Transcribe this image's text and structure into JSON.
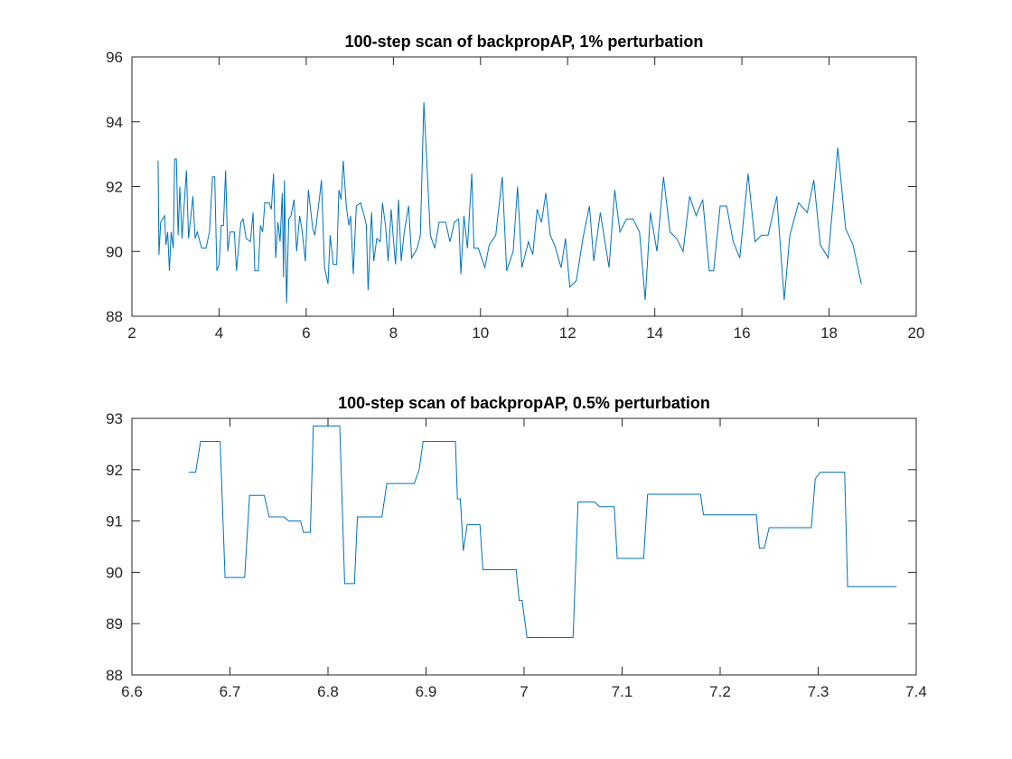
{
  "chart_data": [
    {
      "type": "line",
      "title": "100-step scan of backpropAP, 1% perturbation",
      "color": "#0072bd",
      "x": [
        2.6,
        2.62,
        2.66,
        2.75,
        2.78,
        2.82,
        2.86,
        2.9,
        2.95,
        2.98,
        3.02,
        3.06,
        3.1,
        3.15,
        3.25,
        3.3,
        3.4,
        3.45,
        3.5,
        3.6,
        3.7,
        3.78,
        3.85,
        3.9,
        3.95,
        4.0,
        4.05,
        4.1,
        4.15,
        4.2,
        4.25,
        4.35,
        4.4,
        4.5,
        4.55,
        4.62,
        4.72,
        4.78,
        4.82,
        4.9,
        4.95,
        5.0,
        5.05,
        5.15,
        5.2,
        5.25,
        5.3,
        5.35,
        5.4,
        5.45,
        5.48,
        5.5,
        5.55,
        5.6,
        5.65,
        5.72,
        5.78,
        5.85,
        5.9,
        5.98,
        6.05,
        6.15,
        6.2,
        6.3,
        6.35,
        6.42,
        6.5,
        6.55,
        6.62,
        6.7,
        6.75,
        6.8,
        6.85,
        6.92,
        6.98,
        7.02,
        7.08,
        7.15,
        7.25,
        7.35,
        7.38,
        7.42,
        7.5,
        7.55,
        7.62,
        7.7,
        7.75,
        7.82,
        7.88,
        7.95,
        8.0,
        8.05,
        8.12,
        8.18,
        8.25,
        8.35,
        8.42,
        8.55,
        8.62,
        8.7,
        8.85,
        8.95,
        9.05,
        9.2,
        9.3,
        9.4,
        9.5,
        9.55,
        9.62,
        9.7,
        9.8,
        9.85,
        9.95,
        10.1,
        10.2,
        10.35,
        10.5,
        10.6,
        10.75,
        10.85,
        10.95,
        11.1,
        11.2,
        11.3,
        11.4,
        11.5,
        11.6,
        11.7,
        11.85,
        11.95,
        12.05,
        12.2,
        12.35,
        12.5,
        12.6,
        12.75,
        12.95,
        13.08,
        13.2,
        13.35,
        13.5,
        13.65,
        13.78,
        13.9,
        14.05,
        14.2,
        14.35,
        14.5,
        14.65,
        14.8,
        14.95,
        15.1,
        15.25,
        15.35,
        15.5,
        15.65,
        15.8,
        15.95,
        16.14,
        16.3,
        16.45,
        16.6,
        16.8,
        16.97,
        17.1,
        17.3,
        17.5,
        17.65,
        17.8,
        17.98,
        18.2,
        18.38,
        18.55,
        18.74
      ],
      "values": [
        92.8,
        89.9,
        90.9,
        91.1,
        90.2,
        90.6,
        89.4,
        90.6,
        90.1,
        92.85,
        92.85,
        90.5,
        92.0,
        90.4,
        92.5,
        90.4,
        91.7,
        90.4,
        90.6,
        90.1,
        90.1,
        90.6,
        92.3,
        92.3,
        89.4,
        89.6,
        90.8,
        90.8,
        92.5,
        90.0,
        90.6,
        90.6,
        89.4,
        90.9,
        91.0,
        90.4,
        90.3,
        91.2,
        89.4,
        89.4,
        90.8,
        90.6,
        91.5,
        91.5,
        91.3,
        92.4,
        89.8,
        90.9,
        90.3,
        91.8,
        89.2,
        92.2,
        88.4,
        91.0,
        91.1,
        91.6,
        90.0,
        91.1,
        90.7,
        89.7,
        91.9,
        90.7,
        90.5,
        91.6,
        92.2,
        89.5,
        89.0,
        90.5,
        89.6,
        89.6,
        91.9,
        91.6,
        92.8,
        91.4,
        90.8,
        91.1,
        89.3,
        91.4,
        91.5,
        91.0,
        90.8,
        88.8,
        91.2,
        89.7,
        90.4,
        90.3,
        91.5,
        90.8,
        89.7,
        91.3,
        90.4,
        89.6,
        91.6,
        89.7,
        90.6,
        91.4,
        89.8,
        90.1,
        90.5,
        94.6,
        90.5,
        90.1,
        90.9,
        90.9,
        90.3,
        90.9,
        91.0,
        89.3,
        91.1,
        90.1,
        92.4,
        90.1,
        90.1,
        89.5,
        90.2,
        90.5,
        92.3,
        89.4,
        90.0,
        92.0,
        89.5,
        90.3,
        89.9,
        91.3,
        90.9,
        91.8,
        90.5,
        90.2,
        89.5,
        90.4,
        88.9,
        89.1,
        90.4,
        91.4,
        89.7,
        91.2,
        89.5,
        91.9,
        90.6,
        91.0,
        91.0,
        90.6,
        88.5,
        91.2,
        90.0,
        92.3,
        90.6,
        90.4,
        90.0,
        91.7,
        91.1,
        91.6,
        89.4,
        89.4,
        91.4,
        91.4,
        90.3,
        89.8,
        92.4,
        90.3,
        90.5,
        90.5,
        91.7,
        88.5,
        90.5,
        91.5,
        91.2,
        92.2,
        90.2,
        89.8,
        93.2,
        90.7,
        90.2,
        89.0
      ],
      "xlim": [
        2,
        20
      ],
      "xticks": [
        2,
        4,
        6,
        8,
        10,
        12,
        14,
        16,
        18,
        20
      ],
      "ylim": [
        88,
        96
      ],
      "yticks": [
        88,
        90,
        92,
        94,
        96
      ]
    },
    {
      "type": "line",
      "title": "100-step scan of backpropAP, 0.5% perturbation",
      "color": "#0072bd",
      "x": [
        6.658,
        6.665,
        6.67,
        6.69,
        6.695,
        6.715,
        6.72,
        6.735,
        6.74,
        6.755,
        6.76,
        6.772,
        6.775,
        6.782,
        6.785,
        6.812,
        6.817,
        6.827,
        6.83,
        6.855,
        6.86,
        6.888,
        6.893,
        6.897,
        6.93,
        6.932,
        6.935,
        6.938,
        6.942,
        6.955,
        6.958,
        6.992,
        6.995,
        6.998,
        7.003,
        7.05,
        7.055,
        7.072,
        7.077,
        7.092,
        7.095,
        7.122,
        7.126,
        7.18,
        7.183,
        7.237,
        7.24,
        7.245,
        7.25,
        7.293,
        7.297,
        7.302,
        7.327,
        7.33,
        7.38
      ],
      "values": [
        91.95,
        91.95,
        92.55,
        92.55,
        89.9,
        89.9,
        91.5,
        91.5,
        91.08,
        91.08,
        91.0,
        91.0,
        90.78,
        90.78,
        92.85,
        92.85,
        89.78,
        89.78,
        91.08,
        91.08,
        91.73,
        91.73,
        92.0,
        92.55,
        92.55,
        91.43,
        91.43,
        90.42,
        90.93,
        90.93,
        90.05,
        90.05,
        89.45,
        89.45,
        88.73,
        88.73,
        91.37,
        91.37,
        91.28,
        91.28,
        90.27,
        90.27,
        91.52,
        91.52,
        91.12,
        91.12,
        90.47,
        90.47,
        90.87,
        90.87,
        91.82,
        91.95,
        91.95,
        89.72,
        89.72
      ],
      "xlim": [
        6.6,
        7.4
      ],
      "xticks": [
        6.6,
        6.7,
        6.8,
        6.9,
        7,
        7.1,
        7.2,
        7.3,
        7.4
      ],
      "ylim": [
        88,
        93
      ],
      "yticks": [
        88,
        89,
        90,
        91,
        92,
        93
      ]
    }
  ]
}
